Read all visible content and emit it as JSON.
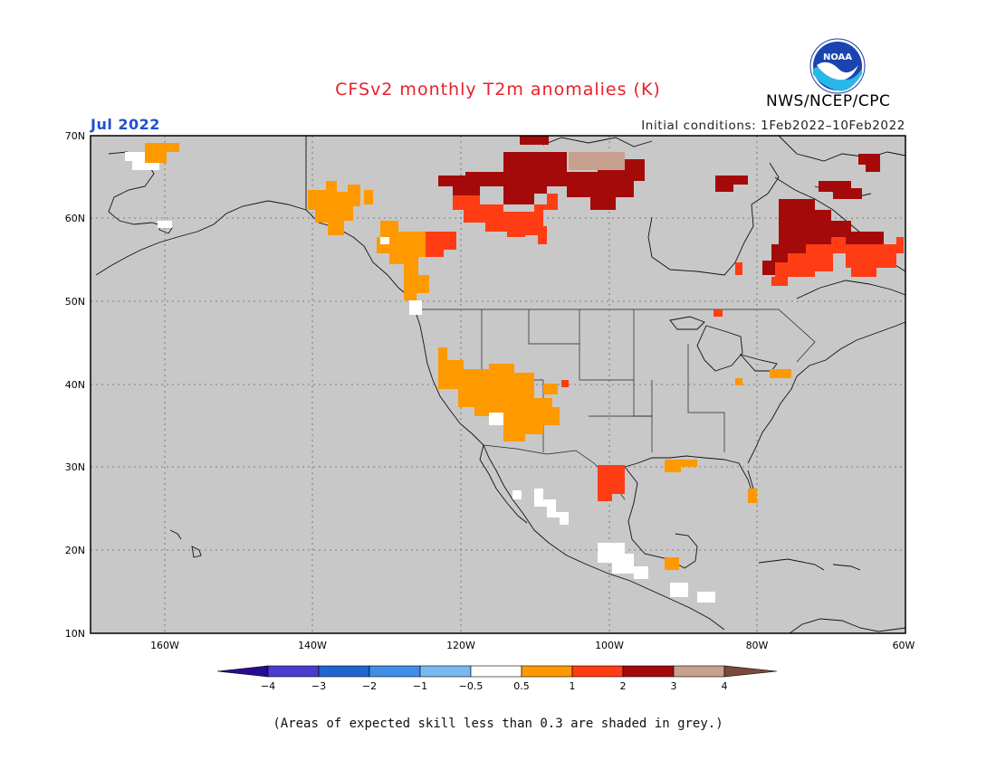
{
  "header": {
    "title": "CFSv2 monthly T2m anomalies (K)",
    "agency": "NWS/NCEP/CPC",
    "month": "Jul 2022",
    "initial_conditions": "Initial conditions: 1Feb2022–10Feb2022",
    "logo_text": "NOAA"
  },
  "map": {
    "lon_range": [
      -172,
      -60
    ],
    "lat_range": [
      10,
      70
    ],
    "lat_labels": [
      "10N",
      "20N",
      "30N",
      "40N",
      "50N",
      "60N",
      "70N"
    ],
    "lon_labels": [
      "160W",
      "140W",
      "120W",
      "100W",
      "80W",
      "60W"
    ],
    "background": "#c8c8c8"
  },
  "colorbar": {
    "labels": [
      "−4",
      "−3",
      "−2",
      "−1",
      "−0.5",
      "0.5",
      "1",
      "2",
      "3",
      "4"
    ],
    "colors": [
      "#2a0a94",
      "#4a3ccc",
      "#1f66cc",
      "#3f8fe8",
      "#7ab8f0",
      "#ffffff",
      "#ff9900",
      "#ff3c14",
      "#a50a0a",
      "#c8a090",
      "#7a4a3a"
    ]
  },
  "footnote": "(Areas of expected skill less than 0.3 are shaded in grey.)"
}
